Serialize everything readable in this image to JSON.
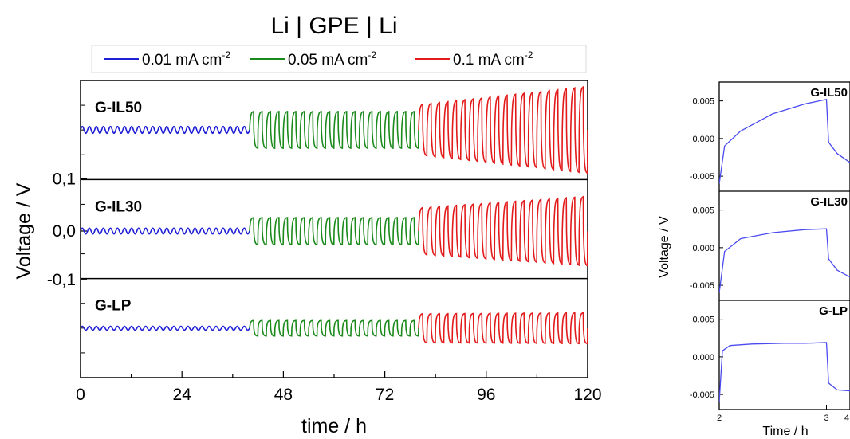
{
  "chart_data": [
    {
      "type": "line",
      "title": "Li | GPE | Li",
      "xlabel": "time / h",
      "ylabel": "Voltage / V",
      "xlim": [
        0,
        120
      ],
      "x_ticks": [
        "0",
        "24",
        "48",
        "72",
        "96",
        "120"
      ],
      "y_ticks": [
        "0,1",
        "0,0",
        "-0,1"
      ],
      "legend_position": "top",
      "series": [
        {
          "name": "0.01 mA cm",
          "sup": "-2",
          "color": "#1f1fd6",
          "x_range": [
            0,
            40
          ]
        },
        {
          "name": "0.05 mA cm",
          "sup": "-2",
          "color": "#1a8a1a",
          "x_range": [
            40,
            80
          ]
        },
        {
          "name": "0.1 mA cm",
          "sup": "-2",
          "color": "#e31a1a",
          "x_range": [
            80,
            120
          ]
        }
      ],
      "panels": [
        {
          "label": "G-IL50",
          "amplitude": {
            "0.01": 0.007,
            "0.05": 0.038,
            "0.1": [
              0.052,
              0.09
            ]
          }
        },
        {
          "label": "G-IL30",
          "amplitude": {
            "0.01": 0.006,
            "0.05": 0.028,
            "0.1": [
              0.048,
              0.072
            ]
          }
        },
        {
          "label": "G-LP",
          "amplitude": {
            "0.01": 0.004,
            "0.05": 0.016,
            "0.1": [
              0.03,
              0.032
            ]
          }
        }
      ]
    },
    {
      "type": "line",
      "xlabel": "Time / h",
      "ylabel": "Voltage / V",
      "xlim": [
        2,
        4
      ],
      "ylim": [
        -0.007,
        0.0075
      ],
      "x_ticks": [
        "2",
        "3",
        "4"
      ],
      "y_ticks": [
        "0.005",
        "0.000",
        "-0.005"
      ],
      "color": "#4a4af0",
      "panels": [
        {
          "label": "G-IL50",
          "x": [
            2.0,
            2.05,
            2.2,
            2.5,
            2.8,
            3.0,
            3.02,
            3.1,
            3.3,
            3.6,
            3.9
          ],
          "y": [
            -0.006,
            -0.001,
            0.001,
            0.0033,
            0.0046,
            0.0052,
            -0.0005,
            -0.002,
            -0.004,
            -0.006,
            -0.0072
          ]
        },
        {
          "label": "G-IL30",
          "x": [
            2.0,
            2.05,
            2.2,
            2.5,
            2.8,
            3.0,
            3.02,
            3.1,
            3.3,
            3.6,
            3.9
          ],
          "y": [
            -0.006,
            -0.0005,
            0.0012,
            0.002,
            0.0024,
            0.0025,
            -0.0015,
            -0.003,
            -0.0045,
            -0.0055,
            -0.006
          ]
        },
        {
          "label": "G-LP",
          "x": [
            2.0,
            2.03,
            2.1,
            2.3,
            2.6,
            2.8,
            3.0,
            3.02,
            3.1,
            3.4,
            3.7,
            4.0
          ],
          "y": [
            -0.006,
            0.0008,
            0.0015,
            0.0017,
            0.0018,
            0.0018,
            0.0019,
            -0.0035,
            -0.0044,
            -0.0047,
            -0.0047,
            -0.0048
          ]
        }
      ]
    }
  ]
}
